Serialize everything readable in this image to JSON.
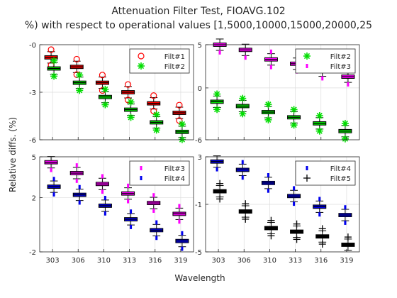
{
  "figure": {
    "title": "Attenuation Filter Test, FIOAVG.102",
    "subtitle": "%) with respect to operational values [1,5000,10000,15000,20000,25",
    "ylabel": "Relative diffs. (%)",
    "xlabel": "Wavelength"
  },
  "colors": {
    "red": "#ff0000",
    "green": "#00dd00",
    "magenta": "#ff00ff",
    "blue": "#0000ee",
    "black": "#000000",
    "grid": "#dddddd",
    "axis": "#262626"
  },
  "chart_data": [
    {
      "type": "box",
      "panel": "top-left",
      "categories": [
        "303",
        "306",
        "310",
        "313",
        "316",
        "319"
      ],
      "yticks": [
        "-0",
        "-3",
        "-6"
      ],
      "ylim": [
        -6,
        0
      ],
      "grid": true,
      "legend_position": "top-right",
      "series": [
        {
          "name": "Filt#1",
          "color": "red",
          "marker": "o",
          "values": [
            -0.8,
            -1.4,
            -2.4,
            -3.0,
            -3.7,
            -4.3
          ]
        },
        {
          "name": "Filt#2",
          "color": "green",
          "marker": "*",
          "values": [
            -1.5,
            -2.4,
            -3.3,
            -4.1,
            -4.9,
            -5.5
          ]
        }
      ]
    },
    {
      "type": "box",
      "panel": "top-right",
      "categories": [
        "303",
        "306",
        "310",
        "313",
        "316",
        "319"
      ],
      "yticks": [
        "5",
        "0",
        "-6"
      ],
      "ylim": [
        -6,
        5
      ],
      "grid": true,
      "legend_position": "top-right",
      "series": [
        {
          "name": "Filt#2",
          "color": "green",
          "marker": "*",
          "values": [
            -1.6,
            -2.1,
            -2.8,
            -3.4,
            -4.1,
            -5.0
          ]
        },
        {
          "name": "Filt#3",
          "color": "magenta",
          "marker": ".",
          "values": [
            5.0,
            4.4,
            3.3,
            2.8,
            2.0,
            1.3
          ]
        }
      ]
    },
    {
      "type": "box",
      "panel": "bottom-left",
      "categories": [
        "303",
        "306",
        "310",
        "313",
        "316",
        "319"
      ],
      "yticks": [
        "5",
        "2",
        "-2"
      ],
      "ylim": [
        -2,
        5
      ],
      "grid": true,
      "legend_position": "top-right",
      "series": [
        {
          "name": "Filt#3",
          "color": "magenta",
          "marker": ".",
          "values": [
            4.6,
            3.8,
            3.0,
            2.3,
            1.6,
            0.8
          ]
        },
        {
          "name": "Filt#4",
          "color": "blue",
          "marker": ".",
          "values": [
            2.8,
            2.2,
            1.4,
            0.4,
            -0.4,
            -1.2
          ]
        }
      ]
    },
    {
      "type": "box",
      "panel": "bottom-right",
      "categories": [
        "303",
        "306",
        "310",
        "313",
        "316",
        "319"
      ],
      "yticks": [
        "3",
        "-1",
        "-5"
      ],
      "ylim": [
        -5,
        3
      ],
      "grid": true,
      "legend_position": "top-right",
      "series": [
        {
          "name": "Filt#4",
          "color": "blue",
          "marker": ".",
          "values": [
            2.6,
            1.9,
            0.8,
            -0.3,
            -1.2,
            -1.9
          ]
        },
        {
          "name": "Filt#5",
          "color": "black",
          "marker": "+",
          "values": [
            0.1,
            -1.6,
            -3.0,
            -3.3,
            -3.7,
            -4.4
          ]
        }
      ]
    }
  ]
}
